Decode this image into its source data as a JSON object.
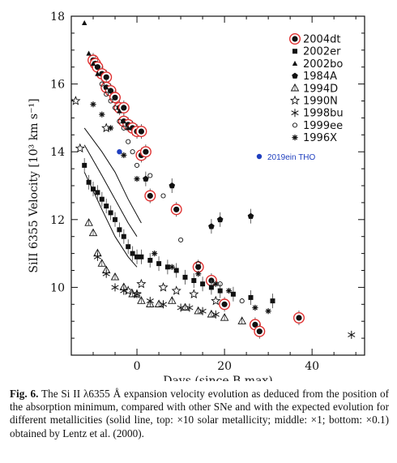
{
  "chart_data": {
    "type": "scatter",
    "xlabel": "Days (since B max)",
    "ylabel": "SiII 6355 Velocity [10³ km s⁻¹]",
    "xlim": [
      -15,
      52
    ],
    "ylim": [
      8,
      18
    ],
    "xticks": [
      0,
      20,
      40
    ],
    "yticks": [
      10,
      12,
      14,
      16,
      18
    ],
    "legend_position": "top-right",
    "legend": [
      "2004dt",
      "2002er",
      "2002bo",
      "1984A",
      "1994D",
      "1990N",
      "1998bu",
      "1999ee",
      "1996X"
    ],
    "series": [
      {
        "name": "2004dt",
        "marker": "ringdot",
        "points": [
          [
            -10,
            16.7
          ],
          [
            -9.5,
            16.6
          ],
          [
            -9,
            16.5
          ],
          [
            -8,
            16.3
          ],
          [
            -7,
            16.2
          ],
          [
            -7,
            15.9
          ],
          [
            -6,
            15.8
          ],
          [
            -5,
            15.6
          ],
          [
            -4,
            15.3
          ],
          [
            -3,
            15.3
          ],
          [
            -3,
            14.9
          ],
          [
            -2,
            14.8
          ],
          [
            -1,
            14.7
          ],
          [
            0,
            14.6
          ],
          [
            1,
            14.6
          ],
          [
            1,
            13.9
          ],
          [
            2,
            14.0
          ],
          [
            3,
            12.7
          ],
          [
            9,
            12.3
          ],
          [
            14,
            10.6
          ],
          [
            17,
            10.2
          ],
          [
            20,
            9.5
          ],
          [
            27,
            8.9
          ],
          [
            28,
            8.7
          ],
          [
            37,
            9.1
          ]
        ]
      },
      {
        "name": "2002er",
        "marker": "square",
        "points": [
          [
            -12,
            13.6
          ],
          [
            -11,
            13.1
          ],
          [
            -10,
            12.9
          ],
          [
            -9,
            12.8
          ],
          [
            -8,
            12.6
          ],
          [
            -7,
            12.4
          ],
          [
            -6,
            12.2
          ],
          [
            -5,
            12.0
          ],
          [
            -4,
            11.7
          ],
          [
            -3,
            11.5
          ],
          [
            -2,
            11.2
          ],
          [
            -1,
            11.0
          ],
          [
            0,
            10.9
          ],
          [
            1,
            10.9
          ],
          [
            3,
            10.8
          ],
          [
            5,
            10.7
          ],
          [
            7,
            10.6
          ],
          [
            9,
            10.5
          ],
          [
            11,
            10.3
          ],
          [
            13,
            10.2
          ],
          [
            15,
            10.1
          ],
          [
            17,
            10.0
          ],
          [
            19,
            9.9
          ],
          [
            22,
            9.8
          ],
          [
            26,
            9.7
          ],
          [
            31,
            9.6
          ]
        ]
      },
      {
        "name": "2002bo",
        "marker": "triangle",
        "points": [
          [
            -12,
            17.8
          ],
          [
            -11,
            16.9
          ],
          [
            -10,
            16.6
          ],
          [
            -9,
            16.3
          ],
          [
            -7,
            15.9
          ],
          [
            -5,
            15.6
          ],
          [
            -4,
            15.2
          ],
          [
            -3,
            14.9
          ],
          [
            -2,
            14.7
          ]
        ]
      },
      {
        "name": "1984A",
        "marker": "pentagon",
        "points": [
          [
            2,
            13.2
          ],
          [
            8,
            13.0
          ],
          [
            17,
            11.8
          ],
          [
            19,
            12.0
          ],
          [
            26,
            12.1
          ]
        ]
      },
      {
        "name": "1994D",
        "marker": "opentri",
        "points": [
          [
            -11,
            11.9
          ],
          [
            -10,
            11.6
          ],
          [
            -9,
            11.0
          ],
          [
            -8,
            10.7
          ],
          [
            -7,
            10.5
          ],
          [
            -5,
            10.3
          ],
          [
            -3,
            10.0
          ],
          [
            -1,
            9.8
          ],
          [
            1,
            9.6
          ],
          [
            3,
            9.5
          ],
          [
            5,
            9.5
          ],
          [
            8,
            9.6
          ],
          [
            11,
            9.4
          ],
          [
            14,
            9.3
          ],
          [
            17,
            9.2
          ],
          [
            20,
            9.1
          ],
          [
            24,
            9.0
          ]
        ]
      },
      {
        "name": "1990N",
        "marker": "openstar",
        "points": [
          [
            -14,
            15.5
          ],
          [
            -13,
            14.1
          ],
          [
            -7,
            14.7
          ],
          [
            -2,
            9.9
          ],
          [
            0,
            9.8
          ],
          [
            1,
            10.1
          ],
          [
            6,
            10.0
          ],
          [
            9,
            9.9
          ],
          [
            13,
            9.8
          ],
          [
            18,
            9.6
          ]
        ]
      },
      {
        "name": "1998bu",
        "marker": "asterisk",
        "points": [
          [
            -9,
            10.9
          ],
          [
            -7,
            10.4
          ],
          [
            -5,
            10.0
          ],
          [
            -3,
            9.9
          ],
          [
            0,
            9.8
          ],
          [
            3,
            9.6
          ],
          [
            6,
            9.5
          ],
          [
            10,
            9.4
          ],
          [
            12,
            9.4
          ],
          [
            15,
            9.3
          ],
          [
            18,
            9.2
          ],
          [
            49,
            8.6
          ]
        ]
      },
      {
        "name": "1999ee",
        "marker": "opencircle",
        "points": [
          [
            -8,
            16.0
          ],
          [
            -7,
            15.7
          ],
          [
            -6,
            15.5
          ],
          [
            -5,
            15.3
          ],
          [
            -4,
            14.9
          ],
          [
            -3,
            14.7
          ],
          [
            -2,
            14.3
          ],
          [
            -1,
            14.0
          ],
          [
            0,
            13.6
          ],
          [
            3,
            13.3
          ],
          [
            6,
            12.7
          ],
          [
            10,
            11.4
          ],
          [
            14,
            10.7
          ],
          [
            19,
            10.1
          ],
          [
            24,
            9.6
          ]
        ]
      },
      {
        "name": "1996X",
        "marker": "starburst",
        "points": [
          [
            -10,
            15.4
          ],
          [
            -8,
            15.1
          ],
          [
            -6,
            14.7
          ],
          [
            -3,
            13.9
          ],
          [
            0,
            13.2
          ],
          [
            4,
            11.0
          ],
          [
            8,
            10.6
          ],
          [
            14,
            10.4
          ],
          [
            18,
            10.1
          ],
          [
            21,
            9.9
          ],
          [
            27,
            9.4
          ],
          [
            30,
            9.3
          ]
        ]
      }
    ],
    "highlight": {
      "label": "2019ein THO",
      "x": -4,
      "y": 14.0,
      "color": "#1f3fbf"
    },
    "model_curves": [
      {
        "points": [
          [
            -12,
            14.7
          ],
          [
            -8,
            14.0
          ],
          [
            -5,
            13.4
          ],
          [
            -2,
            12.6
          ],
          [
            1,
            11.9
          ]
        ]
      },
      {
        "points": [
          [
            -12,
            14.2
          ],
          [
            -8,
            13.3
          ],
          [
            -5,
            12.6
          ],
          [
            -2,
            11.9
          ],
          [
            0,
            11.5
          ]
        ]
      },
      {
        "points": [
          [
            -12,
            13.4
          ],
          [
            -8,
            12.3
          ],
          [
            -5,
            11.5
          ],
          [
            -2,
            10.9
          ],
          [
            0,
            10.6
          ]
        ]
      }
    ]
  },
  "caption": {
    "label": "Fig. 6.",
    "text": "The Si II λ6355 Å expansion velocity evolution as deduced from the position of the absorption minimum, compared with other SNe and with the expected evolution for different metallicities (solid line, top: ×10 solar metallicity; middle: ×1; bottom: ×0.1) obtained by Lentz et al. (2000)."
  }
}
